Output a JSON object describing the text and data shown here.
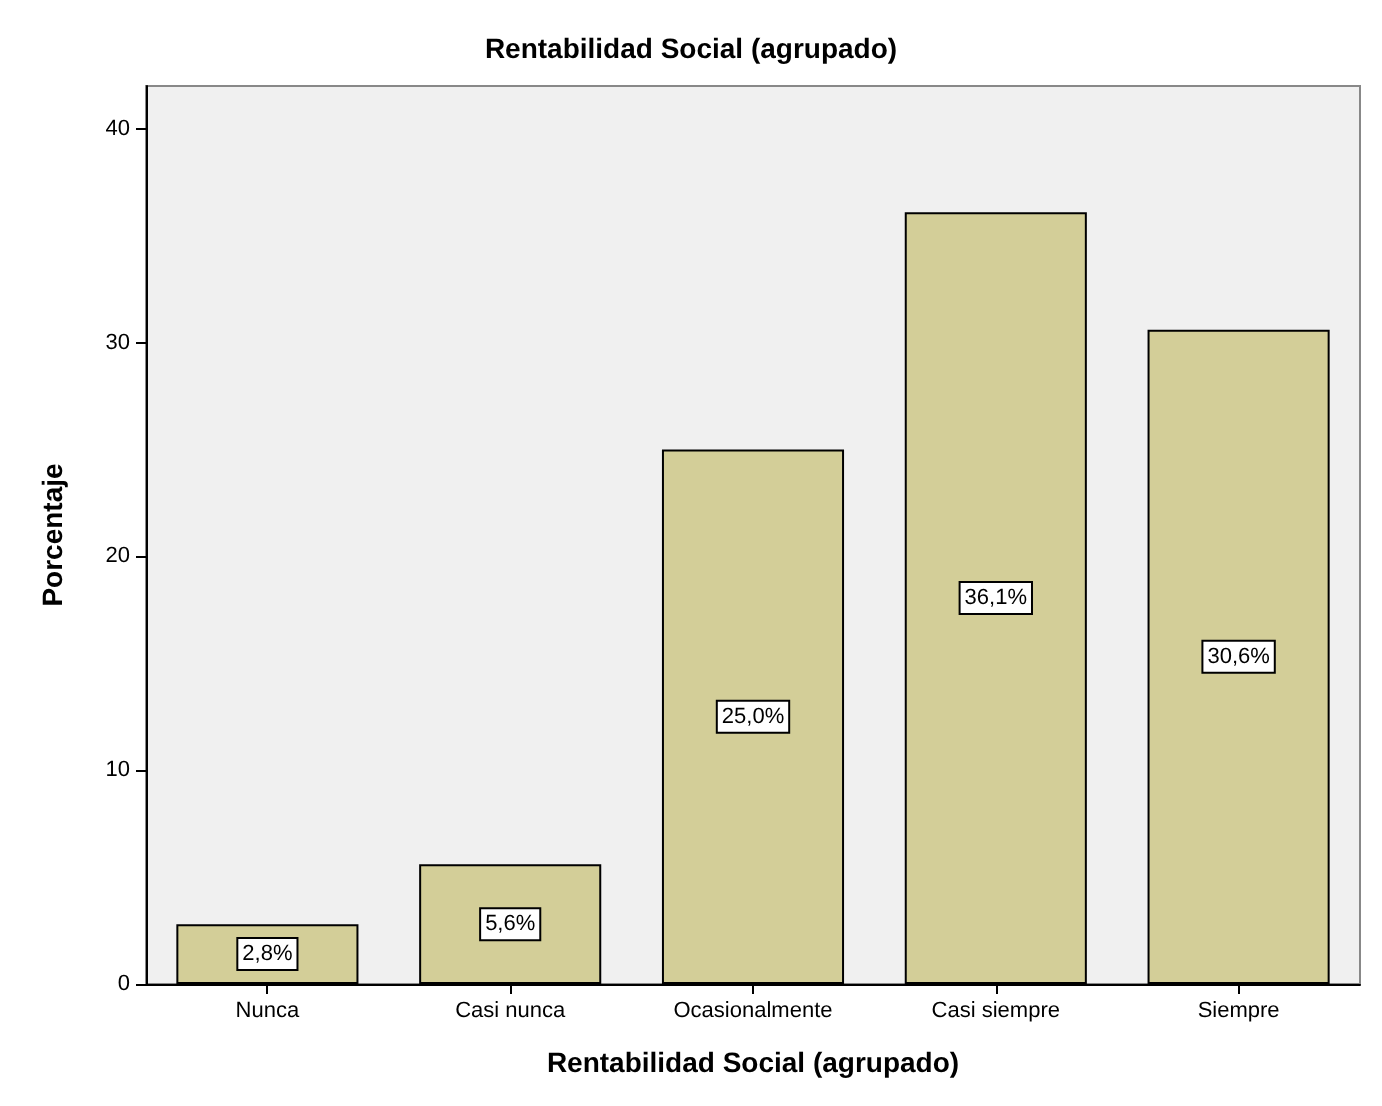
{
  "chart_data": {
    "type": "bar",
    "title": "Rentabilidad Social (agrupado)",
    "xlabel": "Rentabilidad Social (agrupado)",
    "ylabel": "Porcentaje",
    "categories": [
      "Nunca",
      "Casi nunca",
      "Ocasionalmente",
      "Casi siempre",
      "Siempre"
    ],
    "values": [
      2.8,
      5.6,
      25.0,
      36.1,
      30.6
    ],
    "value_labels": [
      "2,8%",
      "5,6%",
      "25,0%",
      "36,1%",
      "30,6%"
    ],
    "color": "#d3ce98",
    "ylim": [
      0,
      42
    ],
    "yticks": [
      0,
      10,
      20,
      30,
      40
    ],
    "grid": false
  }
}
